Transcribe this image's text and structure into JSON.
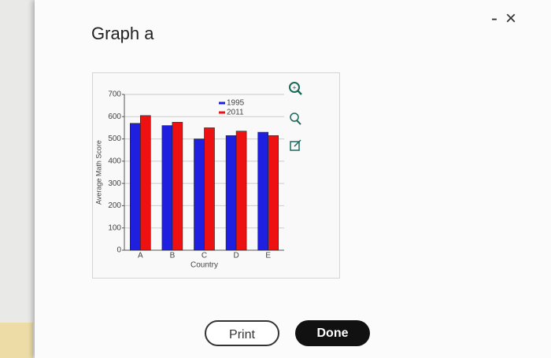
{
  "dialog": {
    "title": "Graph a",
    "print": "Print",
    "done": "Done"
  },
  "chart_data": {
    "type": "bar",
    "x_label": "Country",
    "y_label": "Average Math Score",
    "categories": [
      "A",
      "B",
      "C",
      "D",
      "E"
    ],
    "series": [
      {
        "name": "1995",
        "color": "#1f1fe0",
        "values": [
          570,
          560,
          500,
          515,
          530
        ]
      },
      {
        "name": "2011",
        "color": "#ee1111",
        "values": [
          605,
          575,
          550,
          535,
          515
        ]
      }
    ],
    "ylim": [
      0,
      700
    ],
    "yticks": [
      0,
      100,
      200,
      300,
      400,
      500,
      600,
      700
    ],
    "grid": true
  }
}
